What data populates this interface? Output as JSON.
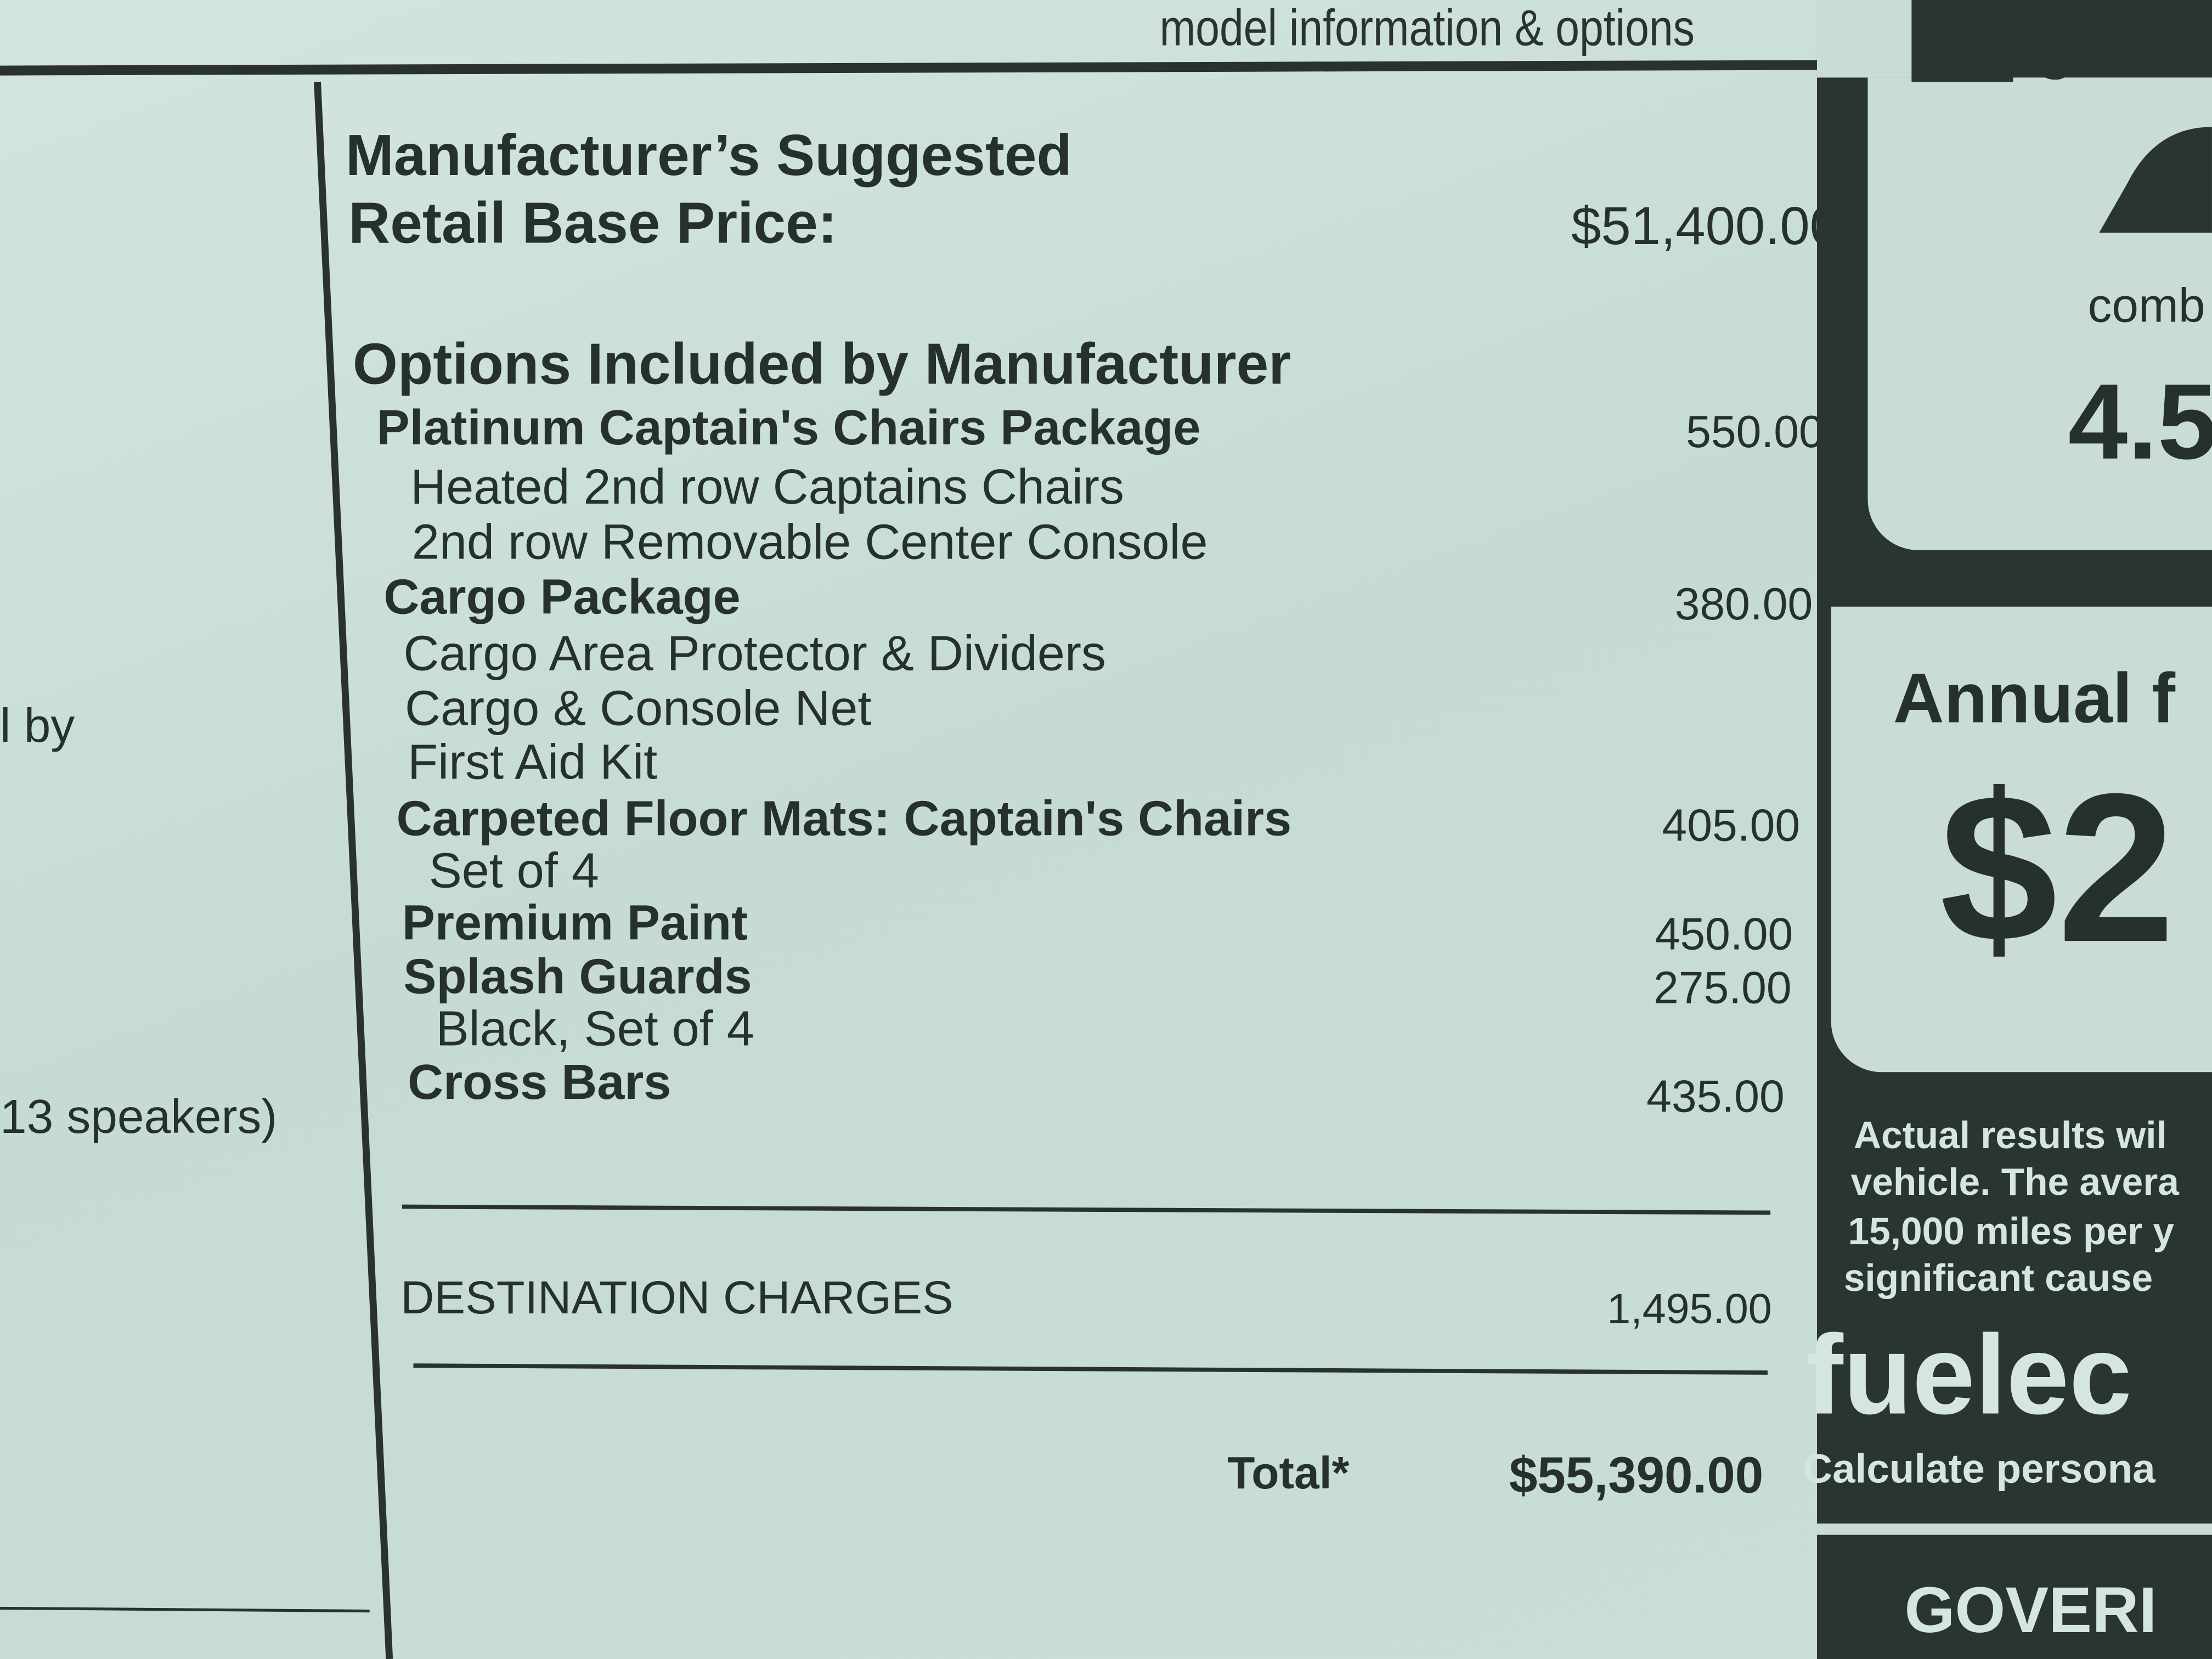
{
  "header": {
    "section_title": "model information & options"
  },
  "left_column": {
    "fragment_1": "l by",
    "fragment_2": "13 speakers)"
  },
  "pricing": {
    "base_price_label_line1": "Manufacturer’s Suggested",
    "base_price_label_line2": "Retail Base Price:",
    "base_price": "$51,400.00",
    "options_heading": "Options Included by Manufacturer",
    "options": [
      {
        "name": "Platinum Captain's Chairs Package",
        "price": "550.00",
        "details": [
          "Heated 2nd row Captains Chairs",
          "2nd row Removable Center Console"
        ]
      },
      {
        "name": "Cargo Package",
        "price": "380.00",
        "details": [
          "Cargo Area Protector & Dividers",
          "Cargo & Console Net",
          "First Aid Kit"
        ]
      },
      {
        "name": "Carpeted Floor Mats: Captain's Chairs",
        "price": "405.00",
        "details": [
          "Set of 4"
        ]
      },
      {
        "name": "Premium Paint",
        "price": "450.00",
        "details": []
      },
      {
        "name": "Splash Guards",
        "price": "275.00",
        "details": [
          "Black, Set of 4"
        ]
      },
      {
        "name": "Cross Bars",
        "price": "435.00",
        "details": []
      }
    ],
    "destination_label": "DESTINATION CHARGES",
    "destination_price": "1,495.00",
    "total_label": "Total*",
    "total_price": "$55,390.00"
  },
  "fuel_panel": {
    "icon": "fuel-pump-icon",
    "combined_label": "comb",
    "combined_value": "4.5",
    "annual_label": "Annual f",
    "annual_value": "$2",
    "disclaimer_lines": [
      "Actual results wil",
      "vehicle. The avera",
      "15,000 miles per y",
      "significant cause"
    ],
    "site_logo": "fuelec",
    "site_tagline": "Calculate persona",
    "government_banner": "GOVERI"
  },
  "colors": {
    "paper": "#c9ded5",
    "ink": "#26302e",
    "panel": "#2a3431"
  }
}
